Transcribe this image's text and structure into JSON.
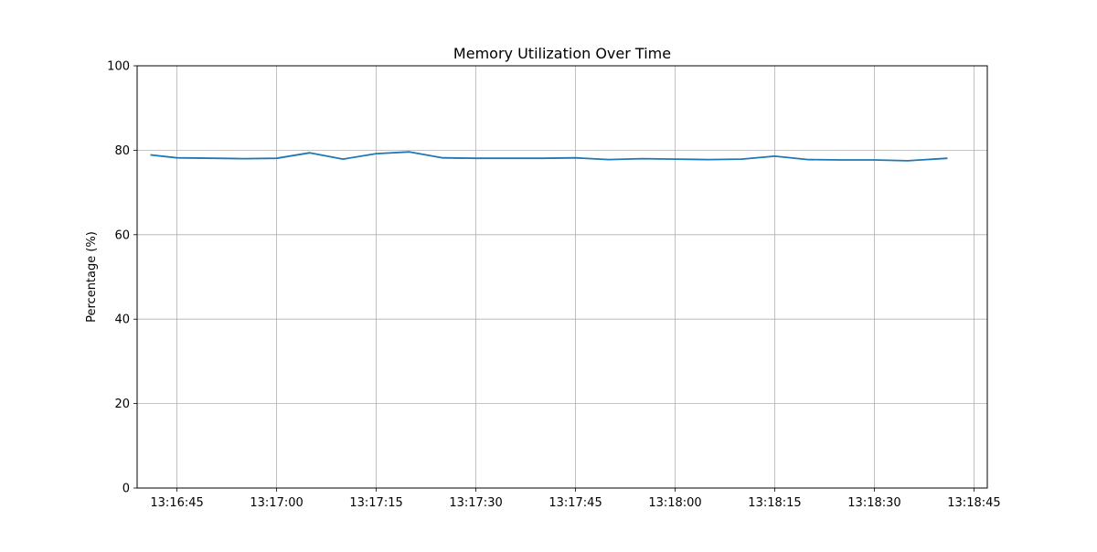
{
  "chart_data": {
    "type": "line",
    "title": "Memory Utilization Over Time",
    "xlabel": "",
    "ylabel": "Percentage (%)",
    "ylim": [
      0,
      100
    ],
    "yticks": [
      0,
      20,
      40,
      60,
      80,
      100
    ],
    "xlim": [
      "13:16:39",
      "13:18:47"
    ],
    "xticks": [
      "13:16:45",
      "13:17:00",
      "13:17:15",
      "13:17:30",
      "13:17:45",
      "13:18:00",
      "13:18:15",
      "13:18:30",
      "13:18:45"
    ],
    "grid": true,
    "series": [
      {
        "color": "#1f77b4",
        "x": [
          "13:16:41",
          "13:16:45",
          "13:16:55",
          "13:17:00",
          "13:17:05",
          "13:17:10",
          "13:17:15",
          "13:17:20",
          "13:17:25",
          "13:17:30",
          "13:17:40",
          "13:17:45",
          "13:17:50",
          "13:17:55",
          "13:18:00",
          "13:18:05",
          "13:18:10",
          "13:18:15",
          "13:18:20",
          "13:18:25",
          "13:18:30",
          "13:18:35",
          "13:18:41"
        ],
        "y": [
          78.9,
          78.2,
          78.0,
          78.1,
          79.4,
          77.9,
          79.2,
          79.6,
          78.2,
          78.1,
          78.1,
          78.2,
          77.8,
          78.0,
          77.9,
          77.8,
          77.9,
          78.6,
          77.8,
          77.7,
          77.7,
          77.5,
          78.1
        ]
      }
    ]
  }
}
